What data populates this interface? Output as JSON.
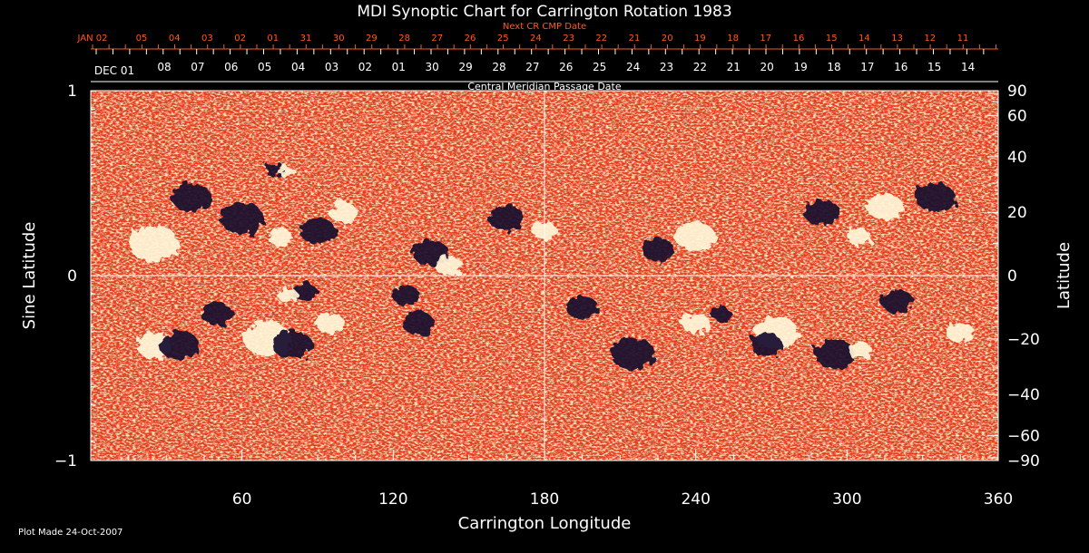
{
  "chart_data": {
    "type": "heatmap",
    "title": "MDI Synoptic Chart for Carrington Rotation 1983",
    "xlabel": "Carrington Longitude",
    "ylabel_left": "Sine Latitude",
    "ylabel_right": "Latitude",
    "top_label_next": "Next CR CMP Date",
    "top_label_cmp": "Central Meridian Passage Date",
    "footer": "Plot Made 24-Oct-2007",
    "xlim": [
      0,
      360
    ],
    "ylim": [
      -1,
      1
    ],
    "x_ticks": [
      "60",
      "120",
      "180",
      "240",
      "300",
      "360"
    ],
    "x_tick_values": [
      60,
      120,
      180,
      240,
      300,
      360
    ],
    "left_ticks": [
      {
        "value": 1,
        "label": "1"
      },
      {
        "value": 0,
        "label": "0"
      },
      {
        "value": -1,
        "label": "−1"
      }
    ],
    "right_ticks": [
      {
        "value": 90,
        "label": "90"
      },
      {
        "value": 60,
        "label": "60"
      },
      {
        "value": 40,
        "label": "40"
      },
      {
        "value": 20,
        "label": "20"
      },
      {
        "value": 0,
        "label": "0"
      },
      {
        "value": -20,
        "label": "−20"
      },
      {
        "value": -40,
        "label": "−40"
      },
      {
        "value": -60,
        "label": "−60"
      },
      {
        "value": -90,
        "label": "−90"
      }
    ],
    "next_cr_dates": [
      "JAN 02",
      "05",
      "04",
      "03",
      "02",
      "01",
      "31",
      "30",
      "29",
      "28",
      "27",
      "26",
      "25",
      "24",
      "23",
      "22",
      "21",
      "20",
      "19",
      "18",
      "17",
      "16",
      "15",
      "14",
      "13",
      "12",
      "11"
    ],
    "cmp_dates": [
      "DEC 01",
      "08",
      "07",
      "06",
      "05",
      "04",
      "03",
      "02",
      "01",
      "30",
      "29",
      "28",
      "27",
      "26",
      "25",
      "24",
      "23",
      "22",
      "21",
      "20",
      "19",
      "18",
      "17",
      "16",
      "15",
      "14"
    ],
    "colors": {
      "background": "#000000",
      "axis": "#ffffff",
      "accent": "#ff5a1a",
      "map_base": "#e8401a",
      "positive": "#fff6d8",
      "negative": "#140a2e"
    },
    "regions": [
      {
        "lon": 73,
        "lat": 35,
        "polarity": "negative",
        "size": 10
      },
      {
        "lon": 78,
        "lat": 34,
        "polarity": "positive",
        "size": 8
      },
      {
        "lon": 60,
        "lat": 18,
        "polarity": "negative",
        "size": 22
      },
      {
        "lon": 75,
        "lat": 12,
        "polarity": "positive",
        "size": 12
      },
      {
        "lon": 90,
        "lat": 14,
        "polarity": "negative",
        "size": 18
      },
      {
        "lon": 100,
        "lat": 20,
        "polarity": "positive",
        "size": 14
      },
      {
        "lon": 40,
        "lat": 25,
        "polarity": "negative",
        "size": 20
      },
      {
        "lon": 25,
        "lat": 10,
        "polarity": "positive",
        "size": 25
      },
      {
        "lon": 135,
        "lat": 7,
        "polarity": "negative",
        "size": 18
      },
      {
        "lon": 142,
        "lat": 3,
        "polarity": "positive",
        "size": 14
      },
      {
        "lon": 165,
        "lat": 18,
        "polarity": "negative",
        "size": 18
      },
      {
        "lon": 180,
        "lat": 14,
        "polarity": "positive",
        "size": 12
      },
      {
        "lon": 225,
        "lat": 8,
        "polarity": "negative",
        "size": 16
      },
      {
        "lon": 240,
        "lat": 12,
        "polarity": "positive",
        "size": 20
      },
      {
        "lon": 290,
        "lat": 20,
        "polarity": "negative",
        "size": 18
      },
      {
        "lon": 305,
        "lat": 12,
        "polarity": "positive",
        "size": 12
      },
      {
        "lon": 315,
        "lat": 22,
        "polarity": "positive",
        "size": 18
      },
      {
        "lon": 335,
        "lat": 25,
        "polarity": "negative",
        "size": 20
      },
      {
        "lon": 85,
        "lat": -5,
        "polarity": "negative",
        "size": 12
      },
      {
        "lon": 78,
        "lat": -6,
        "polarity": "positive",
        "size": 10
      },
      {
        "lon": 25,
        "lat": -22,
        "polarity": "positive",
        "size": 18
      },
      {
        "lon": 35,
        "lat": -22,
        "polarity": "negative",
        "size": 20
      },
      {
        "lon": 50,
        "lat": -12,
        "polarity": "negative",
        "size": 16
      },
      {
        "lon": 70,
        "lat": -20,
        "polarity": "positive",
        "size": 24
      },
      {
        "lon": 80,
        "lat": -22,
        "polarity": "negative",
        "size": 20
      },
      {
        "lon": 95,
        "lat": -15,
        "polarity": "positive",
        "size": 14
      },
      {
        "lon": 125,
        "lat": -6,
        "polarity": "negative",
        "size": 14
      },
      {
        "lon": 130,
        "lat": -15,
        "polarity": "negative",
        "size": 16
      },
      {
        "lon": 195,
        "lat": -10,
        "polarity": "negative",
        "size": 16
      },
      {
        "lon": 215,
        "lat": -25,
        "polarity": "negative",
        "size": 22
      },
      {
        "lon": 240,
        "lat": -15,
        "polarity": "positive",
        "size": 14
      },
      {
        "lon": 250,
        "lat": -12,
        "polarity": "negative",
        "size": 10
      },
      {
        "lon": 272,
        "lat": -18,
        "polarity": "positive",
        "size": 22
      },
      {
        "lon": 268,
        "lat": -22,
        "polarity": "negative",
        "size": 16
      },
      {
        "lon": 295,
        "lat": -25,
        "polarity": "negative",
        "size": 20
      },
      {
        "lon": 305,
        "lat": -24,
        "polarity": "positive",
        "size": 12
      },
      {
        "lon": 320,
        "lat": -8,
        "polarity": "negative",
        "size": 16
      },
      {
        "lon": 345,
        "lat": -18,
        "polarity": "positive",
        "size": 14
      }
    ]
  }
}
